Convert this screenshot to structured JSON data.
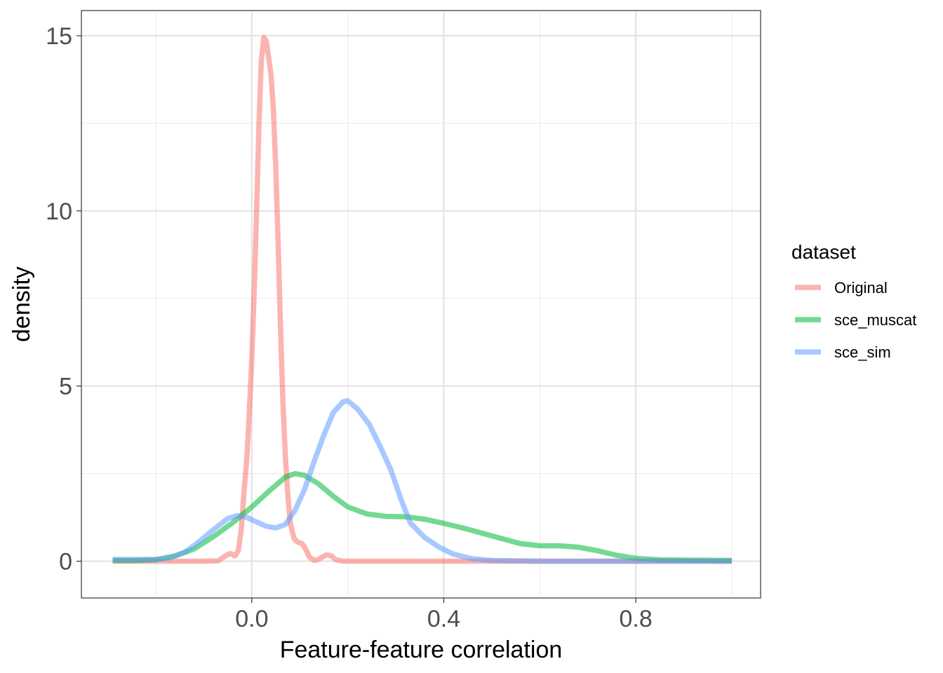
{
  "chart_data": {
    "type": "line",
    "title": "",
    "xlabel": "Feature-feature correlation",
    "ylabel": "density",
    "xlim": [
      -0.355,
      1.06
    ],
    "ylim": [
      -1.05,
      15.72
    ],
    "x_ticks": [
      0.0,
      0.4,
      0.8
    ],
    "x_tick_labels": [
      "0.0",
      "0.4",
      "0.8"
    ],
    "y_ticks": [
      0,
      5,
      10,
      15
    ],
    "y_tick_labels": [
      "0",
      "5",
      "10",
      "15"
    ],
    "grid": true,
    "legend": {
      "title": "dataset",
      "position": "right"
    },
    "series": [
      {
        "name": "Original",
        "color": "#F8766D",
        "points": [
          [
            -0.29,
            0
          ],
          [
            -0.1,
            0
          ],
          [
            -0.07,
            0.01
          ],
          [
            -0.055,
            0.15
          ],
          [
            -0.045,
            0.22
          ],
          [
            -0.035,
            0.15
          ],
          [
            -0.028,
            0.3
          ],
          [
            -0.022,
            0.9
          ],
          [
            -0.016,
            2.0
          ],
          [
            -0.01,
            3.0
          ],
          [
            -0.005,
            4.3
          ],
          [
            0.0,
            5.8
          ],
          [
            0.005,
            7.7
          ],
          [
            0.01,
            10.0
          ],
          [
            0.015,
            12.5
          ],
          [
            0.02,
            14.3
          ],
          [
            0.025,
            14.95
          ],
          [
            0.03,
            14.85
          ],
          [
            0.035,
            14.4
          ],
          [
            0.04,
            13.9
          ],
          [
            0.045,
            12.9
          ],
          [
            0.05,
            11.2
          ],
          [
            0.055,
            9.0
          ],
          [
            0.06,
            6.6
          ],
          [
            0.065,
            4.5
          ],
          [
            0.07,
            3.0
          ],
          [
            0.075,
            1.9
          ],
          [
            0.08,
            1.1
          ],
          [
            0.088,
            0.65
          ],
          [
            0.095,
            0.55
          ],
          [
            0.105,
            0.5
          ],
          [
            0.112,
            0.35
          ],
          [
            0.12,
            0.12
          ],
          [
            0.13,
            0.02
          ],
          [
            0.14,
            0.06
          ],
          [
            0.155,
            0.18
          ],
          [
            0.165,
            0.16
          ],
          [
            0.175,
            0.04
          ],
          [
            0.19,
            0.0
          ],
          [
            0.3,
            0
          ],
          [
            0.5,
            0
          ],
          [
            0.8,
            0
          ],
          [
            1.0,
            0
          ]
        ]
      },
      {
        "name": "sce_muscat",
        "color": "#00BA38",
        "points": [
          [
            -0.29,
            0.02
          ],
          [
            -0.25,
            0.02
          ],
          [
            -0.2,
            0.04
          ],
          [
            -0.16,
            0.15
          ],
          [
            -0.12,
            0.35
          ],
          [
            -0.08,
            0.7
          ],
          [
            -0.04,
            1.1
          ],
          [
            0.0,
            1.55
          ],
          [
            0.04,
            2.05
          ],
          [
            0.07,
            2.4
          ],
          [
            0.09,
            2.5
          ],
          [
            0.11,
            2.45
          ],
          [
            0.14,
            2.2
          ],
          [
            0.17,
            1.85
          ],
          [
            0.2,
            1.55
          ],
          [
            0.24,
            1.35
          ],
          [
            0.28,
            1.28
          ],
          [
            0.32,
            1.27
          ],
          [
            0.36,
            1.2
          ],
          [
            0.4,
            1.08
          ],
          [
            0.44,
            0.95
          ],
          [
            0.48,
            0.8
          ],
          [
            0.52,
            0.65
          ],
          [
            0.56,
            0.5
          ],
          [
            0.6,
            0.44
          ],
          [
            0.64,
            0.44
          ],
          [
            0.68,
            0.4
          ],
          [
            0.72,
            0.3
          ],
          [
            0.76,
            0.17
          ],
          [
            0.8,
            0.08
          ],
          [
            0.85,
            0.04
          ],
          [
            0.9,
            0.03
          ],
          [
            1.0,
            0.02
          ]
        ]
      },
      {
        "name": "sce_sim",
        "color": "#619CFF",
        "points": [
          [
            -0.29,
            0.05
          ],
          [
            -0.25,
            0.05
          ],
          [
            -0.2,
            0.05
          ],
          [
            -0.17,
            0.1
          ],
          [
            -0.14,
            0.25
          ],
          [
            -0.11,
            0.55
          ],
          [
            -0.08,
            0.9
          ],
          [
            -0.05,
            1.22
          ],
          [
            -0.03,
            1.3
          ],
          [
            -0.01,
            1.25
          ],
          [
            0.01,
            1.12
          ],
          [
            0.03,
            1.0
          ],
          [
            0.05,
            0.95
          ],
          [
            0.07,
            1.05
          ],
          [
            0.09,
            1.45
          ],
          [
            0.11,
            2.05
          ],
          [
            0.13,
            2.85
          ],
          [
            0.15,
            3.6
          ],
          [
            0.17,
            4.25
          ],
          [
            0.19,
            4.55
          ],
          [
            0.2,
            4.58
          ],
          [
            0.22,
            4.35
          ],
          [
            0.245,
            3.9
          ],
          [
            0.27,
            3.2
          ],
          [
            0.29,
            2.6
          ],
          [
            0.31,
            1.8
          ],
          [
            0.33,
            1.1
          ],
          [
            0.36,
            0.68
          ],
          [
            0.39,
            0.4
          ],
          [
            0.42,
            0.2
          ],
          [
            0.46,
            0.07
          ],
          [
            0.5,
            0.02
          ],
          [
            0.6,
            0.0
          ],
          [
            0.8,
            0.0
          ],
          [
            1.0,
            0.0
          ]
        ]
      }
    ]
  }
}
